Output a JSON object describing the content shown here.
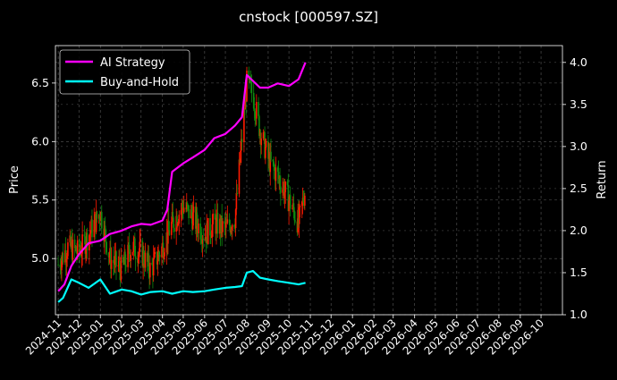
{
  "chart_data": {
    "type": "line",
    "title": "cnstock [000597.SZ]",
    "ylabel": "Price",
    "y2label": "Return",
    "ylim": [
      4.52,
      6.82
    ],
    "y2lim": [
      1.0,
      4.2
    ],
    "yticks": [
      5.0,
      5.5,
      6.0,
      6.5
    ],
    "y2ticks": [
      1.0,
      1.5,
      2.0,
      2.5,
      3.0,
      3.5,
      4.0
    ],
    "xticks": [
      "2024-11",
      "2024-12",
      "2025-01",
      "2025-02",
      "2025-03",
      "2025-04",
      "2025-05",
      "2025-06",
      "2025-07",
      "2025-08",
      "2025-09",
      "2025-10",
      "2025-11",
      "2025-12",
      "2026-01",
      "2026-02",
      "2026-03",
      "2026-04",
      "2026-05",
      "2026-06",
      "2026-07",
      "2026-08",
      "2026-09",
      "2026-10"
    ],
    "grid": true,
    "legend_position": "upper-left",
    "colors": {
      "background": "#000000",
      "up": "#ff1a00",
      "down": "#0f8a0f",
      "ai": "#ff00ff",
      "bh": "#00ffff",
      "grid": "#5a5a5a"
    },
    "candles_note": "",
    "price": {
      "x": [
        "2024-11-01",
        "2024-11-15",
        "2024-12-01",
        "2024-12-15",
        "2025-01-01",
        "2025-01-15",
        "2025-02-01",
        "2025-02-15",
        "2025-03-01",
        "2025-03-15",
        "2025-04-01",
        "2025-04-15",
        "2025-05-01",
        "2025-05-15",
        "2025-06-01",
        "2025-06-15",
        "2025-07-01",
        "2025-07-15",
        "2025-08-01",
        "2025-08-10",
        "2025-08-20",
        "2025-09-01",
        "2025-09-15",
        "2025-10-01",
        "2025-10-15",
        "2025-10-25"
      ],
      "close": [
        4.95,
        5.1,
        5.05,
        5.2,
        5.4,
        5.0,
        4.9,
        5.1,
        5.05,
        4.9,
        5.1,
        5.3,
        5.45,
        5.35,
        5.2,
        5.3,
        5.25,
        5.35,
        6.5,
        6.4,
        6.1,
        5.85,
        5.7,
        5.5,
        5.3,
        5.6
      ]
    },
    "series": [
      {
        "name": "AI Strategy",
        "x": [
          "2024-11-01",
          "2024-11-10",
          "2024-11-20",
          "2024-12-01",
          "2024-12-15",
          "2025-01-01",
          "2025-01-15",
          "2025-02-01",
          "2025-02-15",
          "2025-03-01",
          "2025-03-15",
          "2025-04-01",
          "2025-04-08",
          "2025-04-15",
          "2025-05-01",
          "2025-05-15",
          "2025-06-01",
          "2025-06-15",
          "2025-07-01",
          "2025-07-15",
          "2025-07-25",
          "2025-08-01",
          "2025-08-10",
          "2025-08-20",
          "2025-09-01",
          "2025-09-15",
          "2025-10-01",
          "2025-10-15",
          "2025-10-25"
        ],
        "values": [
          1.28,
          1.36,
          1.58,
          1.72,
          1.85,
          1.88,
          1.96,
          2.0,
          2.05,
          2.08,
          2.07,
          2.12,
          2.25,
          2.7,
          2.8,
          2.87,
          2.96,
          3.1,
          3.15,
          3.25,
          3.35,
          3.85,
          3.78,
          3.7,
          3.7,
          3.75,
          3.72,
          3.8,
          4.0
        ]
      },
      {
        "name": "Buy-and-Hold",
        "x": [
          "2024-11-01",
          "2024-11-08",
          "2024-11-20",
          "2024-12-01",
          "2024-12-15",
          "2025-01-01",
          "2025-01-15",
          "2025-02-01",
          "2025-02-15",
          "2025-03-01",
          "2025-03-15",
          "2025-04-01",
          "2025-04-15",
          "2025-05-01",
          "2025-05-15",
          "2025-06-01",
          "2025-06-15",
          "2025-07-01",
          "2025-07-15",
          "2025-07-25",
          "2025-08-01",
          "2025-08-10",
          "2025-08-20",
          "2025-09-01",
          "2025-09-15",
          "2025-10-01",
          "2025-10-15",
          "2025-10-25"
        ],
        "values": [
          1.15,
          1.2,
          1.42,
          1.38,
          1.32,
          1.42,
          1.25,
          1.3,
          1.28,
          1.24,
          1.27,
          1.28,
          1.25,
          1.28,
          1.27,
          1.28,
          1.3,
          1.32,
          1.33,
          1.34,
          1.5,
          1.52,
          1.44,
          1.42,
          1.4,
          1.38,
          1.36,
          1.38
        ]
      }
    ]
  }
}
